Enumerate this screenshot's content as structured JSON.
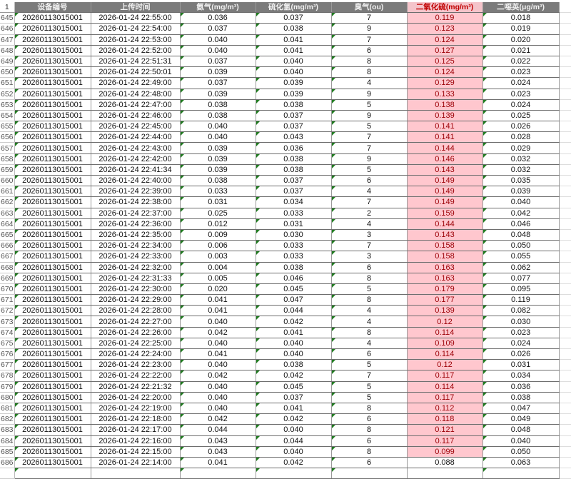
{
  "header": {
    "row_number": "1",
    "columns": [
      "设备编号",
      "上传时间",
      "氨气(mg/m³)",
      "硫化氢(mg/m³)",
      "臭气(ou)",
      "二氧化硫(mg/m³)",
      "二噁英(μg/m³)"
    ]
  },
  "colors": {
    "header_bg": "#7b7b7b",
    "highlight_bg": "#ffc7ce",
    "highlight_text": "#9c0006",
    "highlight_header_text": "#c00000",
    "error_indicator": "#1f7a1f"
  },
  "rows": [
    [
      "645",
      "20260113015001",
      "2026-01-24 22:55:00",
      "0.036",
      "0.037",
      "7",
      "0.119",
      "0.018",
      true
    ],
    [
      "646",
      "20260113015001",
      "2026-01-24 22:54:00",
      "0.037",
      "0.038",
      "9",
      "0.123",
      "0.019",
      true
    ],
    [
      "647",
      "20260113015001",
      "2026-01-24 22:53:00",
      "0.040",
      "0.041",
      "7",
      "0.124",
      "0.020",
      true
    ],
    [
      "648",
      "20260113015001",
      "2026-01-24 22:52:00",
      "0.040",
      "0.041",
      "6",
      "0.127",
      "0.021",
      true
    ],
    [
      "649",
      "20260113015001",
      "2026-01-24 22:51:31",
      "0.037",
      "0.040",
      "8",
      "0.125",
      "0.022",
      true
    ],
    [
      "650",
      "20260113015001",
      "2026-01-24 22:50:01",
      "0.039",
      "0.040",
      "8",
      "0.124",
      "0.023",
      true
    ],
    [
      "651",
      "20260113015001",
      "2026-01-24 22:49:00",
      "0.037",
      "0.039",
      "4",
      "0.129",
      "0.024",
      true
    ],
    [
      "652",
      "20260113015001",
      "2026-01-24 22:48:00",
      "0.039",
      "0.039",
      "9",
      "0.133",
      "0.023",
      true
    ],
    [
      "653",
      "20260113015001",
      "2026-01-24 22:47:00",
      "0.038",
      "0.038",
      "5",
      "0.138",
      "0.024",
      true
    ],
    [
      "654",
      "20260113015001",
      "2026-01-24 22:46:00",
      "0.038",
      "0.037",
      "9",
      "0.139",
      "0.025",
      true
    ],
    [
      "655",
      "20260113015001",
      "2026-01-24 22:45:00",
      "0.040",
      "0.037",
      "5",
      "0.141",
      "0.026",
      true
    ],
    [
      "656",
      "20260113015001",
      "2026-01-24 22:44:00",
      "0.040",
      "0.043",
      "7",
      "0.141",
      "0.028",
      true
    ],
    [
      "657",
      "20260113015001",
      "2026-01-24 22:43:00",
      "0.039",
      "0.036",
      "7",
      "0.144",
      "0.029",
      true
    ],
    [
      "658",
      "20260113015001",
      "2026-01-24 22:42:00",
      "0.039",
      "0.038",
      "9",
      "0.146",
      "0.032",
      true
    ],
    [
      "659",
      "20260113015001",
      "2026-01-24 22:41:34",
      "0.039",
      "0.038",
      "5",
      "0.143",
      "0.032",
      true
    ],
    [
      "660",
      "20260113015001",
      "2026-01-24 22:40:00",
      "0.038",
      "0.037",
      "6",
      "0.149",
      "0.035",
      true
    ],
    [
      "661",
      "20260113015001",
      "2026-01-24 22:39:00",
      "0.033",
      "0.037",
      "4",
      "0.149",
      "0.039",
      true
    ],
    [
      "662",
      "20260113015001",
      "2026-01-24 22:38:00",
      "0.031",
      "0.034",
      "7",
      "0.149",
      "0.040",
      true
    ],
    [
      "663",
      "20260113015001",
      "2026-01-24 22:37:00",
      "0.025",
      "0.033",
      "2",
      "0.159",
      "0.042",
      true
    ],
    [
      "664",
      "20260113015001",
      "2026-01-24 22:36:00",
      "0.012",
      "0.031",
      "4",
      "0.144",
      "0.046",
      true
    ],
    [
      "665",
      "20260113015001",
      "2026-01-24 22:35:00",
      "0.009",
      "0.030",
      "3",
      "0.143",
      "0.048",
      true
    ],
    [
      "666",
      "20260113015001",
      "2026-01-24 22:34:00",
      "0.006",
      "0.033",
      "7",
      "0.158",
      "0.050",
      true
    ],
    [
      "667",
      "20260113015001",
      "2026-01-24 22:33:00",
      "0.003",
      "0.033",
      "3",
      "0.158",
      "0.055",
      true
    ],
    [
      "668",
      "20260113015001",
      "2026-01-24 22:32:00",
      "0.004",
      "0.038",
      "6",
      "0.163",
      "0.062",
      true
    ],
    [
      "669",
      "20260113015001",
      "2026-01-24 22:31:33",
      "0.005",
      "0.046",
      "8",
      "0.163",
      "0.077",
      true
    ],
    [
      "670",
      "20260113015001",
      "2026-01-24 22:30:00",
      "0.020",
      "0.045",
      "5",
      "0.179",
      "0.095",
      true
    ],
    [
      "671",
      "20260113015001",
      "2026-01-24 22:29:00",
      "0.041",
      "0.047",
      "8",
      "0.177",
      "0.119",
      true
    ],
    [
      "672",
      "20260113015001",
      "2026-01-24 22:28:00",
      "0.041",
      "0.044",
      "4",
      "0.139",
      "0.082",
      true
    ],
    [
      "673",
      "20260113015001",
      "2026-01-24 22:27:00",
      "0.040",
      "0.042",
      "4",
      "0.12",
      "0.030",
      true
    ],
    [
      "674",
      "20260113015001",
      "2026-01-24 22:26:00",
      "0.042",
      "0.041",
      "8",
      "0.114",
      "0.023",
      true
    ],
    [
      "675",
      "20260113015001",
      "2026-01-24 22:25:00",
      "0.040",
      "0.040",
      "4",
      "0.109",
      "0.024",
      true
    ],
    [
      "676",
      "20260113015001",
      "2026-01-24 22:24:00",
      "0.041",
      "0.040",
      "6",
      "0.114",
      "0.026",
      true
    ],
    [
      "677",
      "20260113015001",
      "2026-01-24 22:23:00",
      "0.040",
      "0.038",
      "5",
      "0.12",
      "0.031",
      true
    ],
    [
      "678",
      "20260113015001",
      "2026-01-24 22:22:00",
      "0.042",
      "0.042",
      "7",
      "0.117",
      "0.034",
      true
    ],
    [
      "679",
      "20260113015001",
      "2026-01-24 22:21:32",
      "0.040",
      "0.045",
      "5",
      "0.114",
      "0.036",
      true
    ],
    [
      "680",
      "20260113015001",
      "2026-01-24 22:20:00",
      "0.040",
      "0.037",
      "5",
      "0.117",
      "0.038",
      true
    ],
    [
      "681",
      "20260113015001",
      "2026-01-24 22:19:00",
      "0.040",
      "0.041",
      "8",
      "0.112",
      "0.047",
      true
    ],
    [
      "682",
      "20260113015001",
      "2026-01-24 22:18:00",
      "0.042",
      "0.042",
      "6",
      "0.118",
      "0.049",
      true
    ],
    [
      "683",
      "20260113015001",
      "2026-01-24 22:17:00",
      "0.044",
      "0.040",
      "8",
      "0.121",
      "0.048",
      true
    ],
    [
      "684",
      "20260113015001",
      "2026-01-24 22:16:00",
      "0.043",
      "0.044",
      "6",
      "0.117",
      "0.040",
      true
    ],
    [
      "685",
      "20260113015001",
      "2026-01-24 22:15:00",
      "0.043",
      "0.040",
      "8",
      "0.099",
      "0.050",
      true
    ],
    [
      "686",
      "20260113015001",
      "2026-01-24 22:14:00",
      "0.041",
      "0.042",
      "6",
      "0.088",
      "0.063",
      false
    ]
  ]
}
